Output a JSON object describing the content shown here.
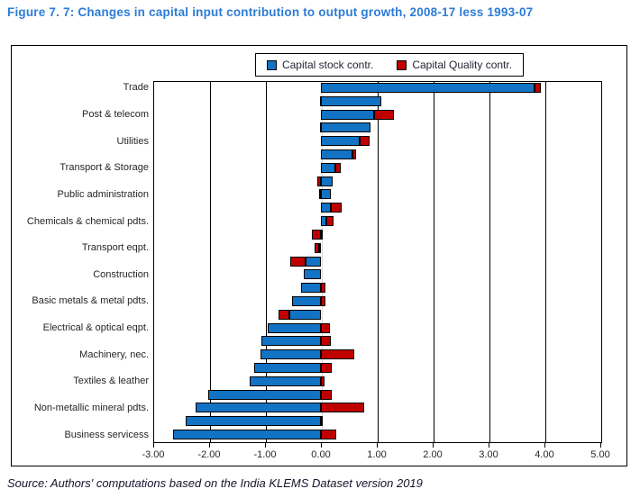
{
  "page": {
    "title": "Figure 7. 7: Changes in capital input contribution to output growth, 2008-17 less 1993-07",
    "source": "Source: Authors' computations based on the India KLEMS Dataset version 2019"
  },
  "legend": {
    "items": [
      {
        "label": "Capital stock contr.",
        "color": "#1273C4"
      },
      {
        "label": "Capital Quality contr.",
        "color": "#C00000"
      }
    ]
  },
  "colors": {
    "stock_bar": "#1273C4",
    "quality_bar": "#C00000",
    "title_text": "#2C7CD5",
    "axis_text": "#262626",
    "gridline": "#000000",
    "zero_gridline": "#d9d9d9"
  },
  "chart_data": {
    "type": "bar",
    "orientation": "horizontal",
    "stacked": true,
    "title": "Figure 7. 7: Changes in capital input contribution to output growth, 2008-17 less 1993-07",
    "xlabel": "",
    "ylabel": "",
    "xlim": [
      -3,
      5
    ],
    "xticks": [
      -3,
      -2,
      -1,
      0,
      1,
      2,
      3,
      4,
      5
    ],
    "xtick_labels": [
      "-3.00",
      "-2.00",
      "-1.00",
      "0.00",
      "1.00",
      "2.00",
      "3.00",
      "4.00",
      "5.00"
    ],
    "grid": true,
    "legend_position": "top",
    "categories": [
      "Trade",
      "",
      "Post & telecom",
      "",
      "Utilities",
      "",
      "Transport & Storage",
      "",
      "Public administration",
      "",
      "Chemicals & chemical pdts.",
      "",
      "Transport eqpt.",
      "",
      "Construction",
      "",
      "Basic metals & metal pdts.",
      "",
      "Electrical & optical eqpt.",
      "",
      "Machinery, nec.",
      "",
      "Textiles & leather",
      "",
      "Non-metallic mineral pdts.",
      "",
      "Business servicess"
    ],
    "series": [
      {
        "name": "Capital stock contr.",
        "color": "#1273C4",
        "values": [
          3.82,
          1.08,
          0.95,
          0.89,
          0.7,
          0.57,
          0.26,
          0.21,
          0.18,
          0.17,
          0.1,
          0.04,
          -0.03,
          -0.28,
          -0.3,
          -0.36,
          -0.52,
          -0.56,
          -0.95,
          -1.07,
          -1.08,
          -1.2,
          -1.27,
          -2.02,
          -2.25,
          -2.42,
          -2.64
        ]
      },
      {
        "name": "Capital Quality contr.",
        "color": "#C00000",
        "values": [
          0.12,
          -0.02,
          0.35,
          -0.02,
          0.17,
          0.06,
          0.09,
          -0.06,
          -0.03,
          0.2,
          0.13,
          -0.16,
          -0.08,
          -0.27,
          0.0,
          0.08,
          0.08,
          -0.2,
          0.16,
          0.17,
          0.59,
          0.19,
          0.07,
          0.19,
          0.77,
          0.02,
          0.28
        ]
      }
    ]
  }
}
